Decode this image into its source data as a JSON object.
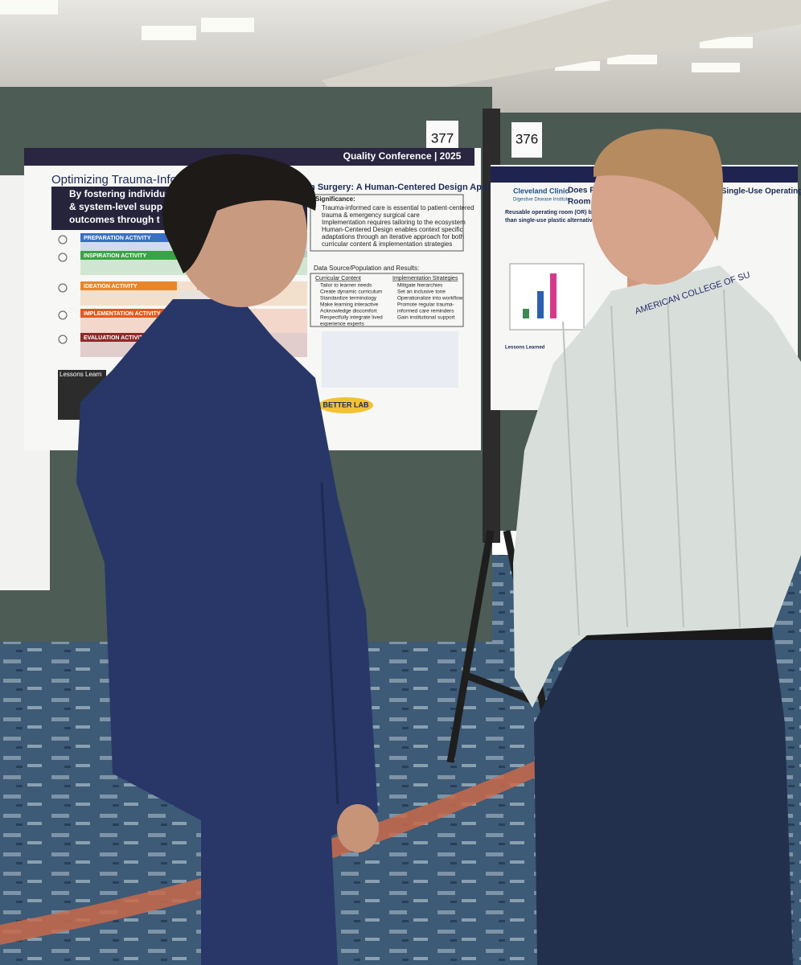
{
  "booths": {
    "left_number": "377",
    "right_number": "376"
  },
  "left_poster": {
    "banner": "Quality Conference | 2025",
    "title": "Optimizing Trauma-Informe",
    "subtitle": "In Surgery: A Human-Centered Design Approach",
    "summary": [
      "By fostering individual be",
      "& system-level support, tra",
      "outcomes through t"
    ],
    "activities": [
      "PREPARATION ACTIVITY",
      "INSPIRATION ACTIVITY",
      "IDEATION ACTIVITY",
      "IMPLEMENTATION ACTIVITY",
      "EVALUATION ACTIVITY"
    ],
    "significance": {
      "heading": "Significance:",
      "bullets": [
        "Trauma-informed care is essential to patient-centered",
        "trauma & emergency surgical care",
        "Implementation requires tailoring to the ecosystem",
        "Human-Centered Design enables context specific",
        "adaptations through an iterative approach for both",
        "curricular content & implementation strategies"
      ]
    },
    "data_heading": "Data Source/Population and Results:",
    "curricular": {
      "heading": "Curricular Content",
      "items": [
        "Tailor to learner needs",
        "Create dynamic curriculum",
        "Standardize terminology",
        "Make learning interactive",
        "Acknowledge discomfort",
        "Respectfully integrate lived",
        "experience experts"
      ]
    },
    "strategies": {
      "heading": "Implementation Strategies",
      "items": [
        "Mitigate hierarchies",
        "Set an inclusive tone",
        "Operationalize into workflow",
        "Promote regular trauma-",
        "informed care reminders",
        "Gain institutional support"
      ]
    },
    "lessons": "Lessons Learn",
    "logo": "BETTER LAB"
  },
  "right_poster": {
    "org": "Cleveland Clinic",
    "institute": "Digestive Disease Institute",
    "title": [
      "Does Reu",
      "Room B"
    ],
    "title_right": "able vs Single-Use Operating",
    "body": [
      "Reusable operating room (OR) bed cover",
      "than single-use plastic alternatives, even"
    ],
    "lessons": "Lessons Learned"
  },
  "lanyard": "AMERICAN COLLEGE OF SU"
}
